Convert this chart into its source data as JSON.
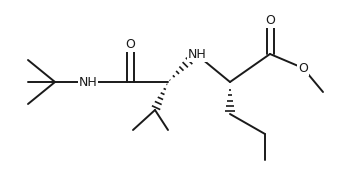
{
  "background": "#ffffff",
  "line_color": "#1a1a1a",
  "lw": 1.4,
  "figsize": [
    3.4,
    1.72
  ],
  "dpi": 100,
  "xlim": [
    0,
    340
  ],
  "ylim": [
    0,
    172
  ]
}
